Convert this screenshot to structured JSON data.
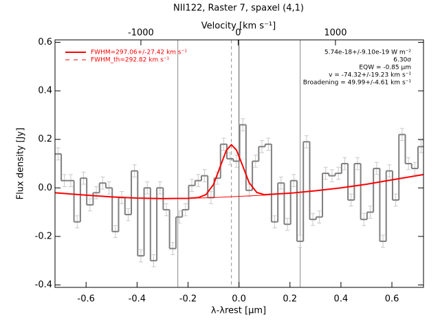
{
  "chart_data": {
    "type": "step",
    "title": "NII122, Raster 7, spaxel (4,1)",
    "x_label": "λ-λrest [μm]",
    "x2_label": "Velocity [km s⁻¹]",
    "y_label": "Flux density [Jy]",
    "xlim": [
      -0.722,
      0.724
    ],
    "ylim": [
      -0.41,
      0.61
    ],
    "x2lim": [
      -1883,
      1905
    ],
    "xticks": [
      -0.6,
      -0.4,
      -0.2,
      {
        "value": 0,
        "label": "0.0"
      },
      0.2,
      0.4,
      0.6
    ],
    "yticks": [
      -0.4,
      -0.2,
      {
        "value": 0,
        "label": "0.0"
      },
      0.2,
      0.4,
      0.6
    ],
    "x2ticks": [
      -1000,
      0,
      1000
    ],
    "bin_width": 0.025,
    "x": [
      -0.71,
      -0.685,
      -0.66,
      -0.635,
      -0.61,
      -0.585,
      -0.56,
      -0.535,
      -0.51,
      -0.485,
      -0.46,
      -0.435,
      -0.41,
      -0.385,
      -0.36,
      -0.335,
      -0.31,
      -0.285,
      -0.26,
      -0.235,
      -0.21,
      -0.185,
      -0.16,
      -0.135,
      -0.11,
      -0.085,
      -0.06,
      -0.035,
      -0.01,
      0.015,
      0.04,
      0.065,
      0.09,
      0.115,
      0.14,
      0.165,
      0.19,
      0.215,
      0.24,
      0.265,
      0.29,
      0.315,
      0.34,
      0.365,
      0.39,
      0.415,
      0.44,
      0.465,
      0.49,
      0.515,
      0.54,
      0.565,
      0.59,
      0.615,
      0.64,
      0.665,
      0.69,
      0.715
    ],
    "values": [
      0.14,
      0.03,
      0.03,
      -0.14,
      0.04,
      -0.07,
      -0.02,
      0.02,
      0.0,
      -0.18,
      -0.04,
      -0.11,
      0.07,
      -0.28,
      0.0,
      -0.3,
      0.0,
      -0.09,
      -0.25,
      -0.12,
      -0.09,
      0.01,
      0.03,
      0.05,
      -0.04,
      0.04,
      0.18,
      0.12,
      0.11,
      0.26,
      -0.01,
      0.11,
      0.17,
      0.18,
      -0.14,
      0.02,
      -0.15,
      0.03,
      -0.22,
      0.19,
      -0.13,
      -0.12,
      0.06,
      0.05,
      0.06,
      0.1,
      -0.05,
      0.1,
      -0.13,
      -0.1,
      0.08,
      -0.22,
      0.07,
      -0.05,
      0.22,
      0.1,
      0.08,
      0.17
    ],
    "errors": [
      0.025,
      0.025,
      0.025,
      0.025,
      0.025,
      0.025,
      0.025,
      0.025,
      0.025,
      0.025,
      0.025,
      0.025,
      0.025,
      0.025,
      0.025,
      0.025,
      0.025,
      0.025,
      0.025,
      0.025,
      0.025,
      0.025,
      0.025,
      0.025,
      0.025,
      0.025,
      0.025,
      0.025,
      0.025,
      0.025,
      0.025,
      0.025,
      0.025,
      0.025,
      0.025,
      0.025,
      0.025,
      0.025,
      0.025,
      0.025,
      0.025,
      0.025,
      0.025,
      0.025,
      0.025,
      0.025,
      0.025,
      0.025,
      0.025,
      0.025,
      0.025,
      0.025,
      0.025,
      0.025,
      0.025,
      0.025,
      0.025,
      0.025
    ],
    "color": "#7f7f7f",
    "error_color": "#c8c8c8",
    "fit": {
      "color": "#ff0000",
      "x": [
        -0.722,
        -0.6,
        -0.5,
        -0.4,
        -0.3,
        -0.2,
        -0.16,
        -0.13,
        -0.1,
        -0.07,
        -0.05,
        -0.03,
        -0.01,
        0.01,
        0.04,
        0.07,
        0.1,
        0.2,
        0.3,
        0.4,
        0.5,
        0.6,
        0.724
      ],
      "values": [
        -0.02,
        -0.03,
        -0.037,
        -0.042,
        -0.044,
        -0.043,
        -0.04,
        -0.028,
        0.014,
        0.098,
        0.154,
        0.178,
        0.156,
        0.103,
        0.021,
        -0.019,
        -0.028,
        -0.022,
        -0.012,
        0.0,
        0.015,
        0.033,
        0.055
      ]
    },
    "baseline": {
      "color": "#ff0000",
      "x": [
        -0.722,
        -0.6,
        -0.5,
        -0.4,
        -0.3,
        -0.2,
        -0.1,
        0,
        0.1,
        0.2,
        0.3,
        0.4,
        0.5,
        0.6,
        0.724
      ],
      "values": [
        -0.02,
        -0.03,
        -0.037,
        -0.042,
        -0.044,
        -0.043,
        -0.04,
        -0.035,
        -0.03,
        -0.022,
        -0.012,
        0.0,
        0.015,
        0.033,
        0.055
      ]
    },
    "vlines": [
      -0.24,
      0,
      0.24
    ],
    "vline_dashed": -0.03,
    "legend": [
      {
        "label": "FWHM=297.06+/-27.42 km s⁻¹",
        "color": "#ff0000",
        "dash": false
      },
      {
        "label": "FWHM_th=292.82 km s⁻¹",
        "color": "#ff0000",
        "dash": true
      }
    ],
    "annotations": [
      "5.74e-18+/-9.10e-19 W m⁻²",
      "6.30σ",
      "EQW = -0.85 μm",
      "v = -74.32+/-19.23 km s⁻¹",
      "Broadening = 49.99+/-4.61 km s⁻¹"
    ]
  }
}
